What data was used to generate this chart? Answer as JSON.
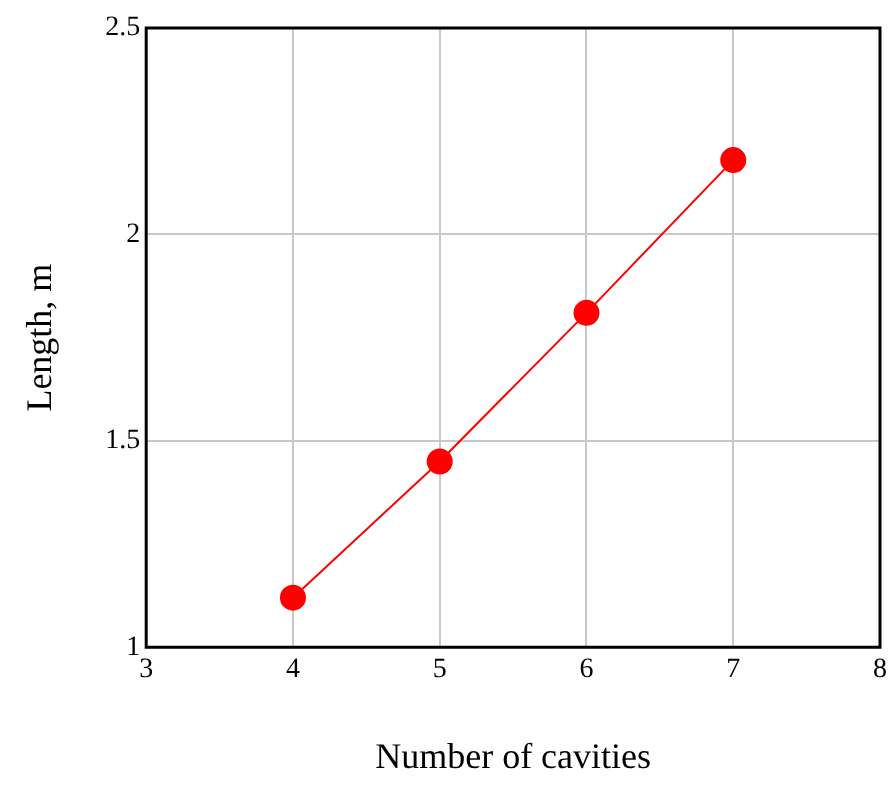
{
  "chart_data": {
    "type": "line",
    "xlabel": "Number of cavities",
    "ylabel": "Length, m",
    "x": [
      4,
      5,
      6,
      7
    ],
    "series": [
      {
        "color": "#ff0000",
        "values": [
          1.12,
          1.45,
          1.81,
          2.18
        ]
      }
    ],
    "xlim": [
      3,
      8
    ],
    "xticks": [
      3,
      4,
      5,
      6,
      7,
      8
    ],
    "ylim": [
      1,
      2.5
    ],
    "yticks": [
      1,
      1.5,
      2,
      2.5
    ],
    "grid": true,
    "legend": false,
    "marker": "circle",
    "line_style": "solid"
  }
}
